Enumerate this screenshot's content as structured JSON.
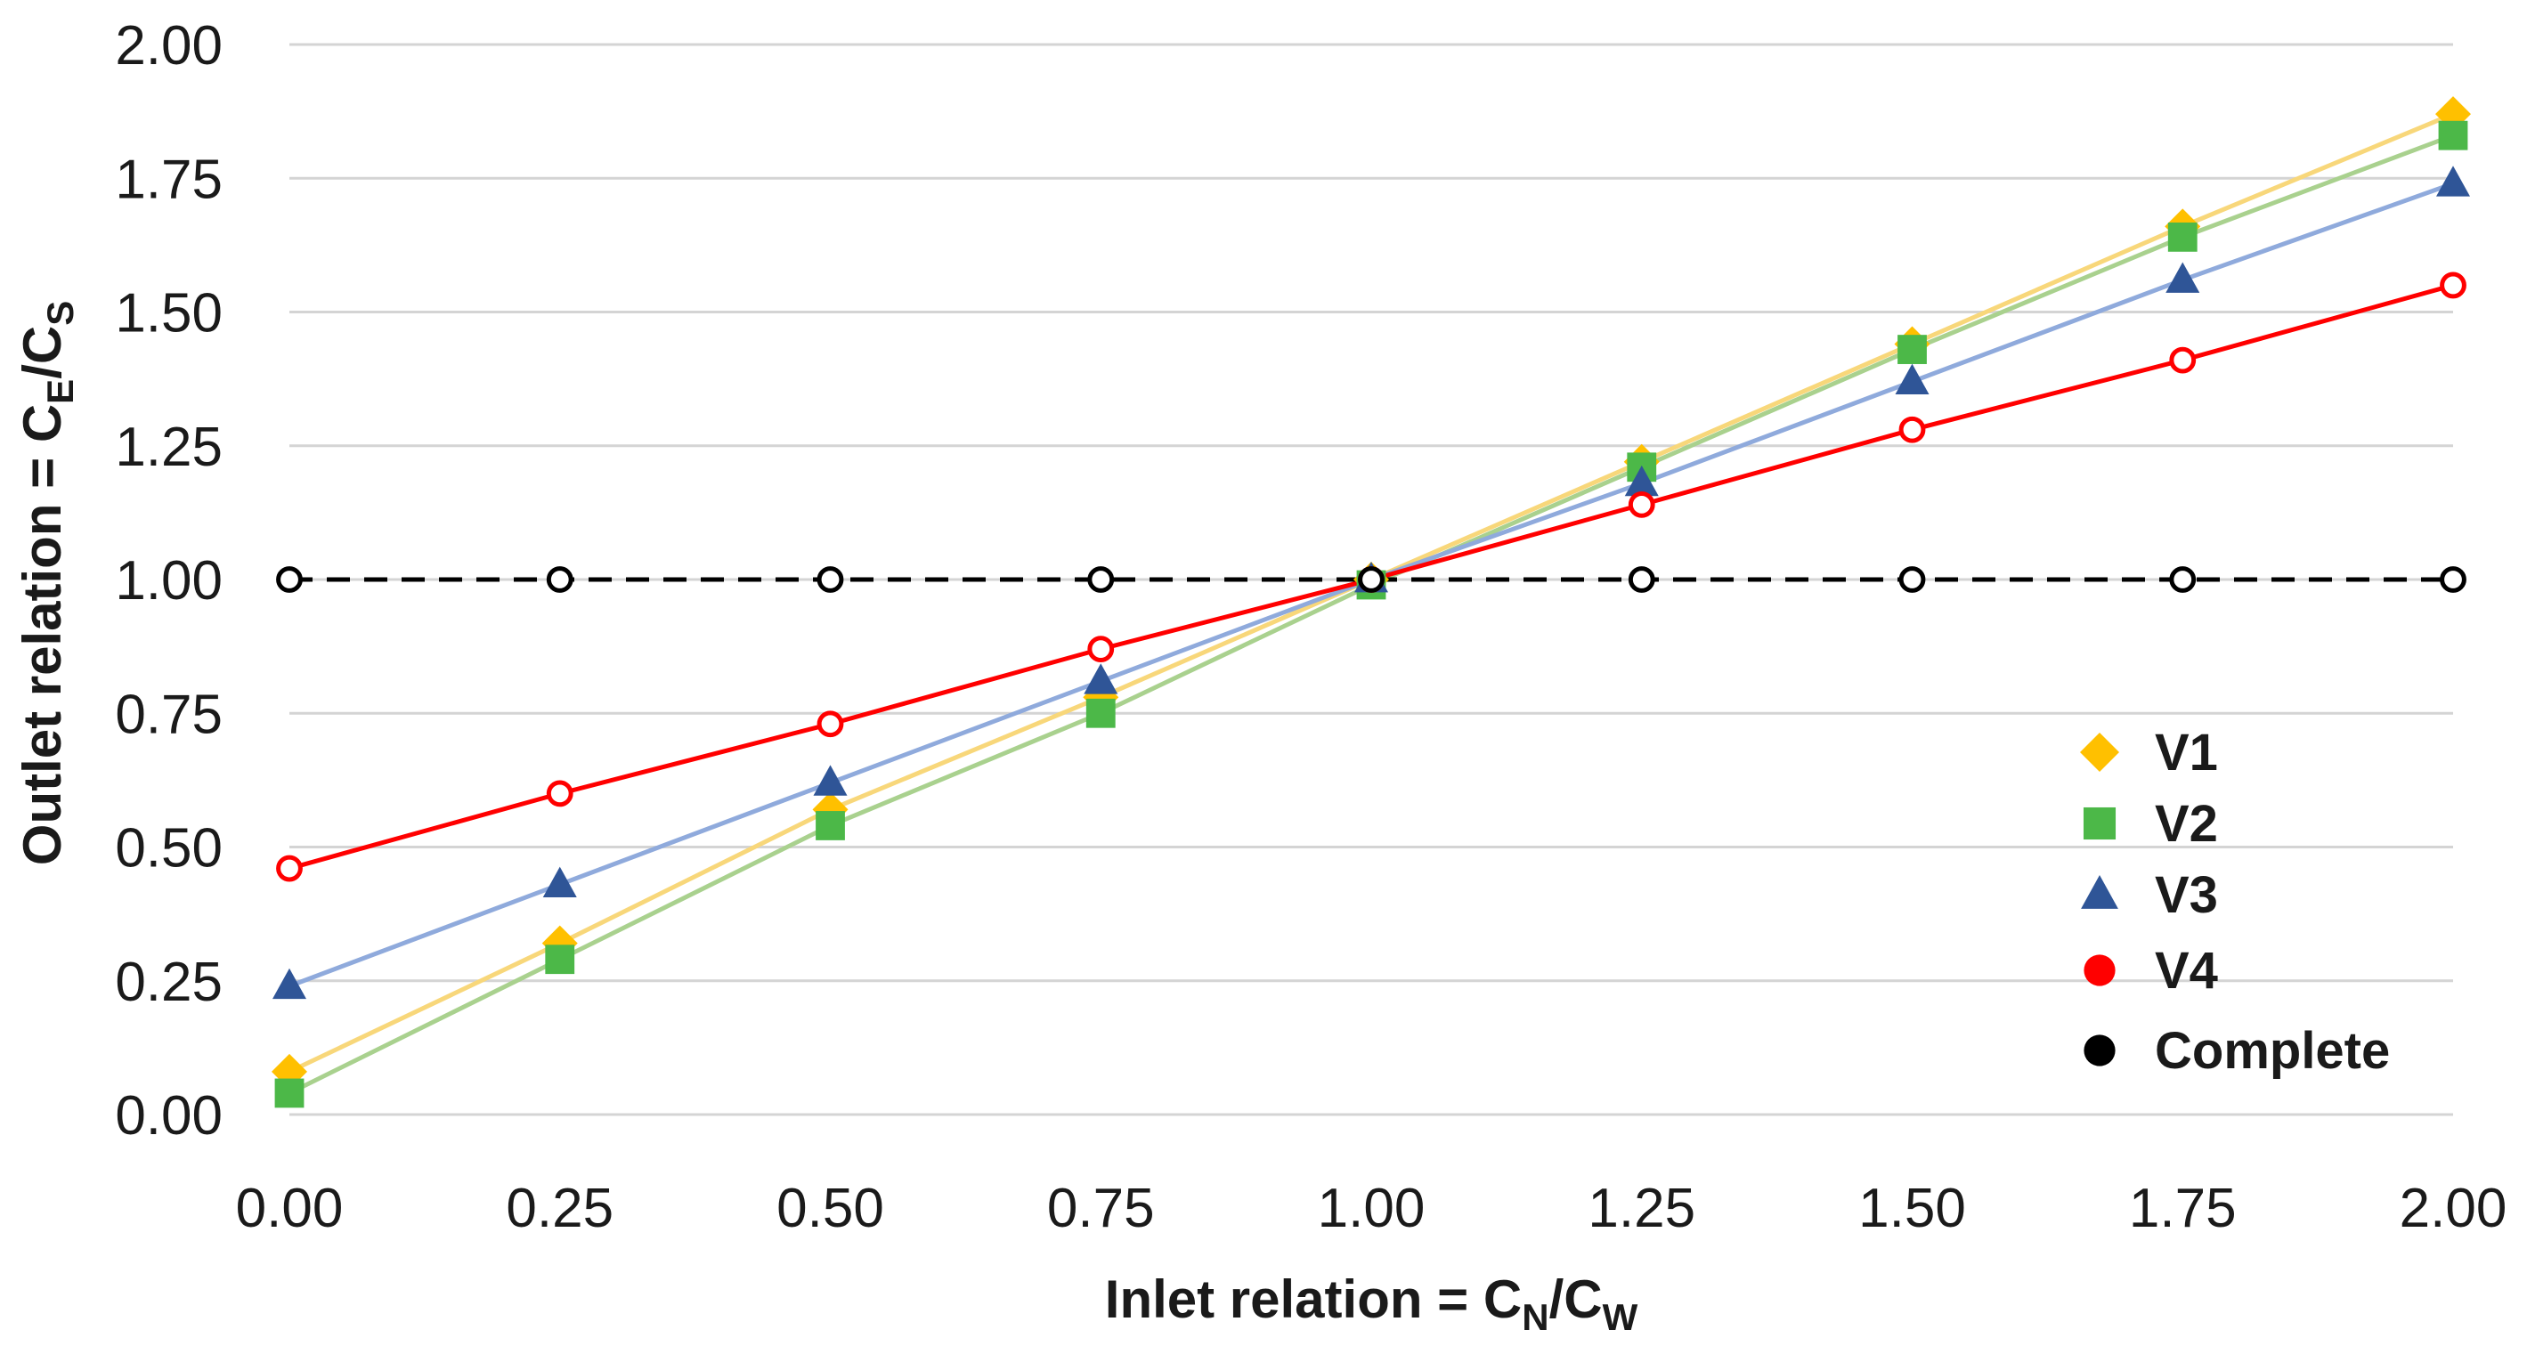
{
  "chart_data": {
    "type": "line",
    "xlabel": {
      "text": "Inlet relation = C",
      "sub1": "N",
      "mid": "/C",
      "sub2": "W"
    },
    "ylabel": {
      "text": "Outlet relation = C",
      "sub1": "E",
      "mid": "/C",
      "sub2": "S"
    },
    "xlim": [
      0,
      2
    ],
    "ylim": [
      0,
      2
    ],
    "x_ticks": [
      "0.00",
      "0.25",
      "0.50",
      "0.75",
      "1.00",
      "1.25",
      "1.50",
      "1.75",
      "2.00"
    ],
    "y_ticks": [
      "0.00",
      "0.25",
      "0.50",
      "0.75",
      "1.00",
      "1.25",
      "1.50",
      "1.75",
      "2.00"
    ],
    "grid": "horizontal",
    "legend_position": "lower-right",
    "x": [
      0,
      0.25,
      0.5,
      0.75,
      1.0,
      1.25,
      1.5,
      1.75,
      2.0
    ],
    "series": [
      {
        "name": "V1",
        "marker": "diamond",
        "color": "#FFC000",
        "line_color": "#F8D77A",
        "values": [
          0.08,
          0.32,
          0.57,
          0.78,
          1.0,
          1.22,
          1.44,
          1.66,
          1.87
        ]
      },
      {
        "name": "V2",
        "marker": "square",
        "color": "#4CB848",
        "line_color": "#A9D18E",
        "values": [
          0.04,
          0.29,
          0.54,
          0.75,
          0.99,
          1.21,
          1.43,
          1.64,
          1.83
        ]
      },
      {
        "name": "V3",
        "marker": "triangle",
        "color": "#2F5597",
        "line_color": "#8FAADC",
        "values": [
          0.24,
          0.43,
          0.62,
          0.81,
          1.0,
          1.18,
          1.37,
          1.56,
          1.74
        ]
      },
      {
        "name": "V4",
        "marker": "circle-open",
        "color": "#FF0000",
        "line_color": "#FF0000",
        "values": [
          0.46,
          0.6,
          0.73,
          0.87,
          1.0,
          1.14,
          1.28,
          1.41,
          1.55
        ]
      },
      {
        "name": "Complete",
        "marker": "circle-open",
        "color": "#000000",
        "line_color": "#000000",
        "dashed": true,
        "values": [
          1.0,
          1.0,
          1.0,
          1.0,
          1.0,
          1.0,
          1.0,
          1.0,
          1.0
        ]
      }
    ]
  }
}
